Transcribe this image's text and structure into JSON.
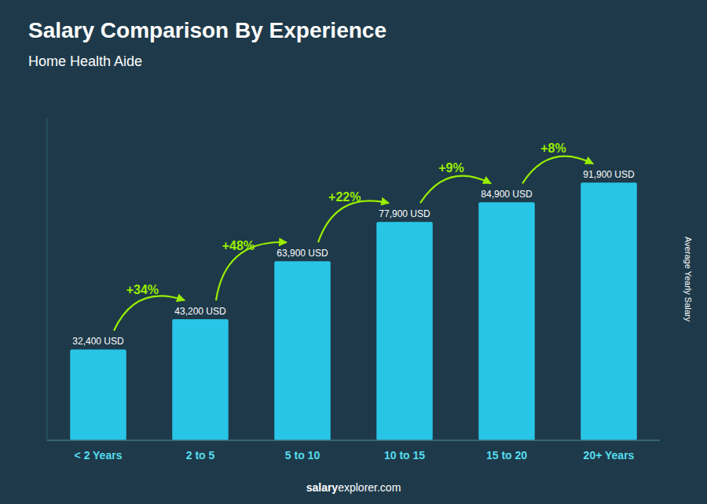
{
  "chart_data": {
    "type": "bar",
    "title": "Salary Comparison By Experience",
    "subtitle": "Home Health Aide",
    "categories": [
      "< 2 Years",
      "2 to 5",
      "5 to 10",
      "10 to 15",
      "15 to 20",
      "20+ Years"
    ],
    "values": [
      32400,
      43200,
      63900,
      77900,
      84900,
      91900
    ],
    "value_labels": [
      "32,400 USD",
      "43,200 USD",
      "63,900 USD",
      "77,900 USD",
      "84,900 USD",
      "91,900 USD"
    ],
    "data_labels": true,
    "annotations": [
      "+34%",
      "+48%",
      "+22%",
      "+9%",
      "+8%"
    ],
    "ylabel": "Average Yearly Salary",
    "footer": [
      "salary",
      "explorer.com"
    ],
    "color": "#29c5e6",
    "ylim": [
      0,
      115000
    ],
    "tick_labels": "x",
    "grid": false
  }
}
